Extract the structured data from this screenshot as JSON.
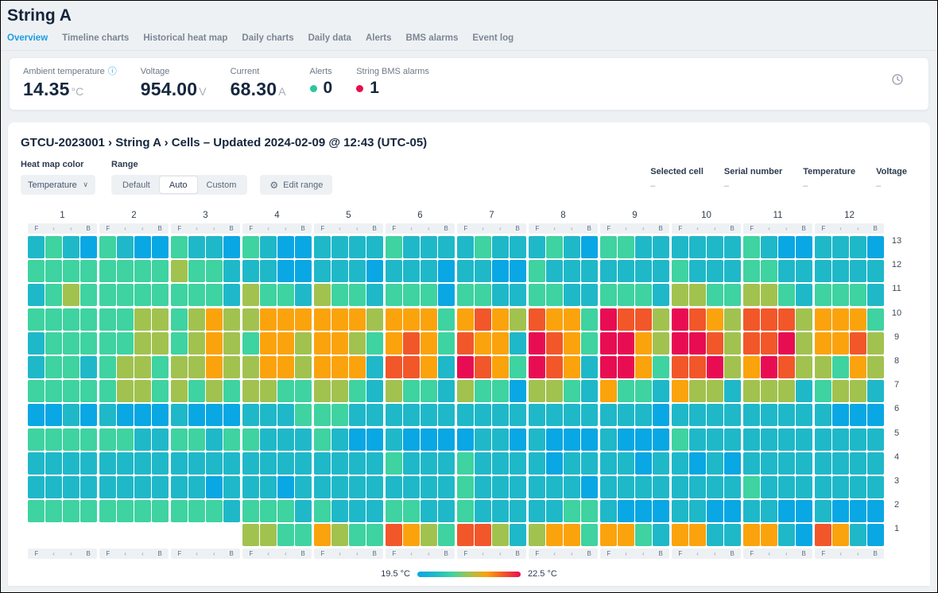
{
  "header": {
    "title": "String A",
    "tabs": [
      {
        "label": "Overview",
        "active": true
      },
      {
        "label": "Timeline charts",
        "active": false
      },
      {
        "label": "Historical heat map",
        "active": false
      },
      {
        "label": "Daily charts",
        "active": false
      },
      {
        "label": "Daily data",
        "active": false
      },
      {
        "label": "Alerts",
        "active": false
      },
      {
        "label": "BMS alarms",
        "active": false
      },
      {
        "label": "Event log",
        "active": false
      }
    ]
  },
  "stats": {
    "ambient": {
      "label": "Ambient temperature",
      "value": "14.35",
      "unit": "°C"
    },
    "voltage": {
      "label": "Voltage",
      "value": "954.00",
      "unit": "V"
    },
    "current": {
      "label": "Current",
      "value": "68.30",
      "unit": "A"
    },
    "alerts": {
      "label": "Alerts",
      "value": "0",
      "dot_color": "#2ec5a0"
    },
    "bms_alarms": {
      "label": "String BMS alarms",
      "value": "1",
      "dot_color": "#e90d50"
    }
  },
  "heatmap_section": {
    "heading": "GTCU-2023001 › String A › Cells – Updated 2024-02-09 @ 12:43 (UTC-05)",
    "controls": {
      "color_label": "Heat map color",
      "color_value": "Temperature",
      "range_label": "Range",
      "range_options": [
        "Default",
        "Auto",
        "Custom"
      ],
      "range_active": "Auto",
      "edit_range_label": "Edit range"
    },
    "selected_info": [
      {
        "label": "Selected cell",
        "value": "–"
      },
      {
        "label": "Serial number",
        "value": "–"
      },
      {
        "label": "Temperature",
        "value": "–"
      },
      {
        "label": "Voltage",
        "value": "–"
      }
    ]
  },
  "chart_data": {
    "type": "heatmap",
    "metric": "Temperature",
    "legend": {
      "min": "19.5 °C",
      "max": "22.5 °C"
    },
    "groups": [
      "1",
      "2",
      "3",
      "4",
      "5",
      "6",
      "7",
      "8",
      "9",
      "10",
      "11",
      "12"
    ],
    "group_columns": [
      "F",
      "‹",
      "‹",
      "B"
    ],
    "palette": {
      "B": "#09a7e3",
      "C": "#1fb8c9",
      "G": "#3ed3a0",
      "O": "#a2c24f",
      "Y": "#fba30c",
      "T": "#f2572a",
      "R": "#e80d53"
    },
    "palette_order": [
      "B",
      "C",
      "G",
      "O",
      "Y",
      "T",
      "R"
    ],
    "palette_meaning": "B=coolest(blue) C=cyan G=green O=olive Y=orange T=red-orange R=hottest(crimson), scale 19.5 °C to 22.5 °C",
    "rows": [
      {
        "row": 13,
        "groups": [
          "CGCB",
          "GCBB",
          "GCCB",
          "GCBB",
          "CCCC",
          "GCCC",
          "CGCC",
          "CGCB",
          "GGCC",
          "CCCC",
          "GCBB",
          "CCCB"
        ]
      },
      {
        "row": 12,
        "groups": [
          "GGGG",
          "GGGG",
          "OGGC",
          "CCBB",
          "CCCB",
          "CCCB",
          "CCBB",
          "GCCC",
          "CCCC",
          "GCCC",
          "GGCC",
          "CCCC"
        ]
      },
      {
        "row": 11,
        "groups": [
          "CGOG",
          "GGGG",
          "GGGC",
          "OGGC",
          "OGGC",
          "GGGB",
          "GGCC",
          "GGCC",
          "GGGC",
          "OOGG",
          "OOGC",
          "GGGC"
        ]
      },
      {
        "row": 10,
        "groups": [
          "GGGG",
          "GGOO",
          "GOYO",
          "OYYY",
          "YYYO",
          "YYYG",
          "YTYO",
          "TYYG",
          "RTTO",
          "RTYO",
          "TTTO",
          "YYYG"
        ]
      },
      {
        "row": 9,
        "groups": [
          "CGGG",
          "GGOO",
          "GOYO",
          "GYYO",
          "YYOG",
          "YTYG",
          "TYYC",
          "RTYG",
          "RRYO",
          "RRTO",
          "TTRO",
          "YYTO"
        ]
      },
      {
        "row": 8,
        "groups": [
          "CGGC",
          "GOOG",
          "OOYO",
          "OYYO",
          "YYYC",
          "TTYC",
          "RTYG",
          "RTYC",
          "RRYG",
          "TTRO",
          "YRTO",
          "OGYO"
        ]
      },
      {
        "row": 7,
        "groups": [
          "GGGG",
          "GOOG",
          "OGOG",
          "OOGG",
          "OOGC",
          "OGGC",
          "OGGB",
          "OOGC",
          "YGGC",
          "YOOC",
          "OOOC",
          "GOOC"
        ]
      },
      {
        "row": 6,
        "groups": [
          "BBCB",
          "CBBB",
          "CBBB",
          "CCCG",
          "GGCC",
          "CCCC",
          "CCCC",
          "CCCC",
          "CCCB",
          "CCCC",
          "CCCC",
          "CBBB"
        ]
      },
      {
        "row": 5,
        "groups": [
          "GGGG",
          "GGCC",
          "GGCG",
          "GCCC",
          "GCBB",
          "CBBB",
          "BCCB",
          "CBBB",
          "CBBB",
          "GCCC",
          "CCCC",
          "CCCC"
        ]
      },
      {
        "row": 4,
        "groups": [
          "CCCC",
          "CCCC",
          "CCCC",
          "CCCC",
          "CCCC",
          "GCCC",
          "GCCC",
          "CBCC",
          "CCBC",
          "CBCB",
          "CCCC",
          "CCCC"
        ]
      },
      {
        "row": 3,
        "groups": [
          "CCCC",
          "CCCC",
          "CCBC",
          "CCBC",
          "CCCC",
          "CCCC",
          "GCCC",
          "CCCB",
          "CCCC",
          "CCCC",
          "GCCC",
          "CCCC"
        ]
      },
      {
        "row": 2,
        "groups": [
          "GGGG",
          "GGGG",
          "GGGC",
          "GGGC",
          "GCCC",
          "GGCC",
          "GCCC",
          "CCGG",
          "CBBB",
          "CCBB",
          "CCBB",
          "CBBB"
        ]
      },
      {
        "row": 1,
        "groups": [
          "----",
          "----",
          "----",
          "OOGG",
          "YOGG",
          "TYOG",
          "TTOC",
          "OYYG",
          "YYGC",
          "YYCC",
          "YYCB",
          "TYCB"
        ]
      }
    ]
  }
}
